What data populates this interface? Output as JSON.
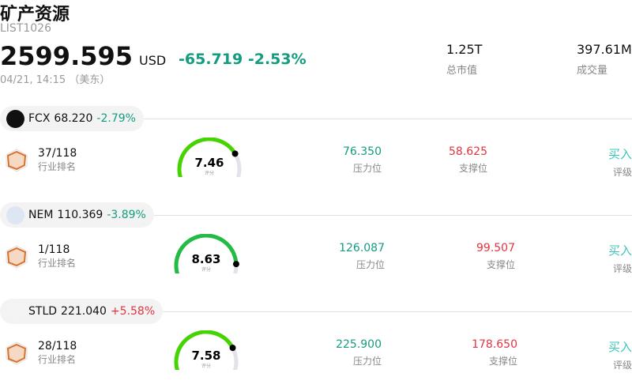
{
  "header": {
    "title": "矿产资源",
    "code": "LIST1026",
    "price": "2599.595",
    "currency": "USD",
    "change": "-65.719",
    "change_pct": "-2.53%",
    "time": "04/21, 14:15 （美东）",
    "market_cap": "1.25T",
    "market_cap_label": "总市值",
    "volume": "397.61M",
    "volume_label": "成交量"
  },
  "colors": {
    "up": "#e5333f",
    "down": "#149c80",
    "gauge": "#44d400",
    "buy": "#3cc7b9"
  },
  "stocks": [
    {
      "ticker": "FCX",
      "price": "68.220",
      "change_pct": "-2.79%",
      "direction": "down",
      "rank": "37/118",
      "rank_label": "行业排名",
      "score": 7.46,
      "score_text": "7.46",
      "score_label": "评分",
      "resistance": "76.350",
      "resistance_label": "压力位",
      "support": "58.625",
      "support_label": "支撑位",
      "rating": "买入",
      "rating_label": "评级"
    },
    {
      "ticker": "NEM",
      "price": "110.369",
      "change_pct": "-3.89%",
      "direction": "down",
      "rank": "1/118",
      "rank_label": "行业排名",
      "score": 8.63,
      "score_text": "8.63",
      "score_label": "评分",
      "resistance": "126.087",
      "resistance_label": "压力位",
      "support": "99.507",
      "support_label": "支撑位",
      "rating": "买入",
      "rating_label": "评级"
    },
    {
      "ticker": "STLD",
      "price": "221.040",
      "change_pct": "+5.58%",
      "direction": "up",
      "rank": "28/118",
      "rank_label": "行业排名",
      "score": 7.58,
      "score_text": "7.58",
      "score_label": "评分",
      "resistance": "225.900",
      "resistance_label": "压力位",
      "support": "178.650",
      "support_label": "支撑位",
      "rating": "买入",
      "rating_label": "评级"
    }
  ]
}
